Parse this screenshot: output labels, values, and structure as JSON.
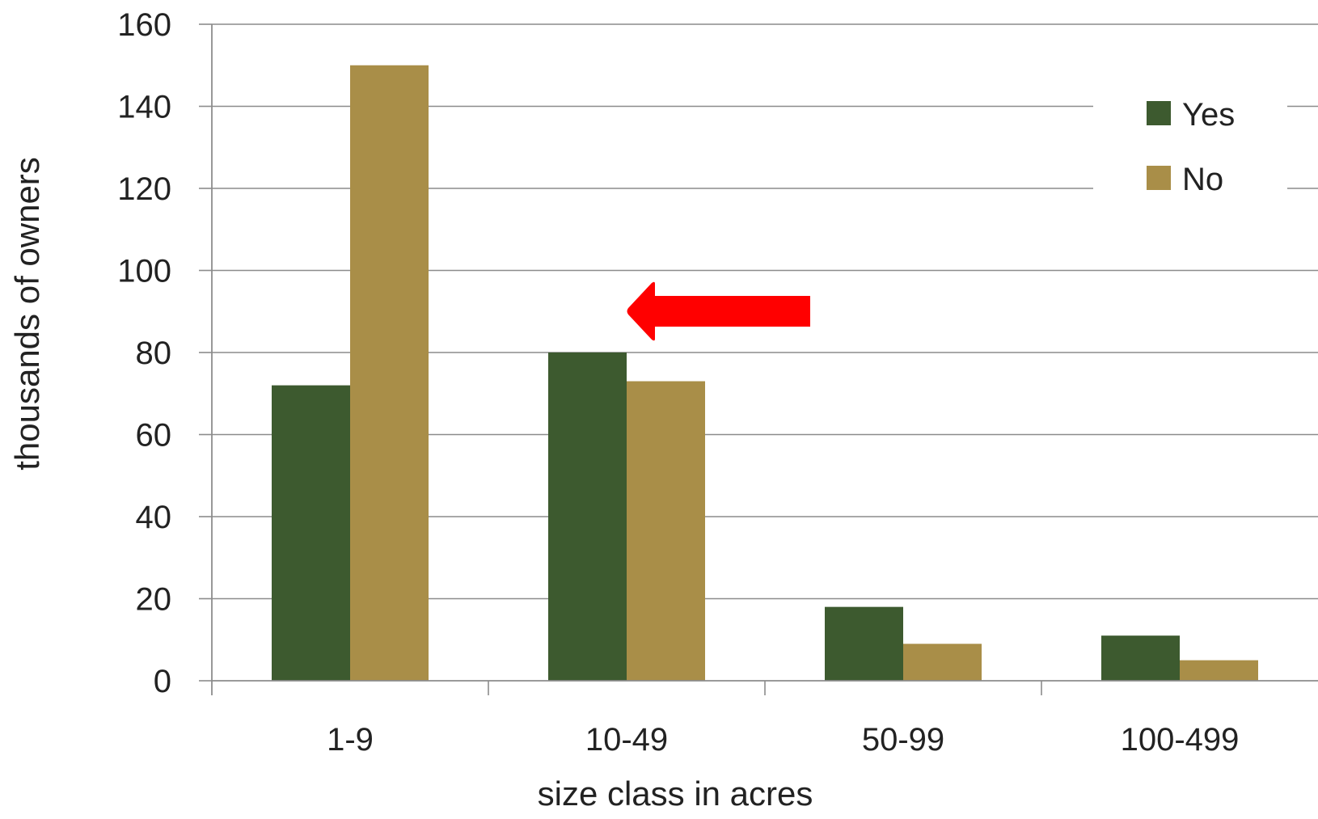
{
  "chart_data": {
    "type": "bar",
    "categories": [
      "1-9",
      "10-49",
      "50-99",
      "100-499"
    ],
    "series": [
      {
        "name": "Yes",
        "values": [
          72,
          80,
          18,
          11
        ],
        "color": "#3d5a2f"
      },
      {
        "name": "No",
        "values": [
          150,
          73,
          9,
          5
        ],
        "color": "#a98e48"
      }
    ],
    "xlabel": "size class in acres",
    "ylabel": "thousands of owners",
    "ylim": [
      0,
      160
    ],
    "yticks": [
      0,
      20,
      40,
      60,
      80,
      100,
      120,
      140,
      160
    ],
    "grid": true,
    "legend": "top-right",
    "annotation": {
      "type": "arrow",
      "color": "#ff0000",
      "points_to": "10-49",
      "direction": "left"
    }
  }
}
